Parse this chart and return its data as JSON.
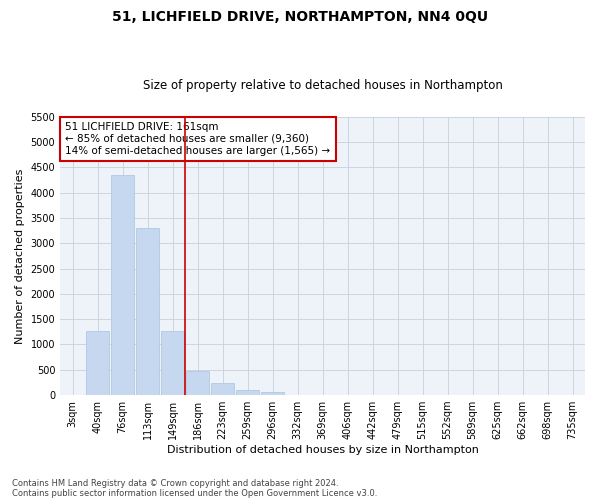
{
  "title": "51, LICHFIELD DRIVE, NORTHAMPTON, NN4 0QU",
  "subtitle": "Size of property relative to detached houses in Northampton",
  "xlabel": "Distribution of detached houses by size in Northampton",
  "ylabel": "Number of detached properties",
  "annotation_line1": "51 LICHFIELD DRIVE: 161sqm",
  "annotation_line2": "← 85% of detached houses are smaller (9,360)",
  "annotation_line3": "14% of semi-detached houses are larger (1,565) →",
  "footnote1": "Contains HM Land Registry data © Crown copyright and database right 2024.",
  "footnote2": "Contains public sector information licensed under the Open Government Licence v3.0.",
  "bin_labels": [
    "3sqm",
    "40sqm",
    "76sqm",
    "113sqm",
    "149sqm",
    "186sqm",
    "223sqm",
    "259sqm",
    "296sqm",
    "332sqm",
    "369sqm",
    "406sqm",
    "442sqm",
    "479sqm",
    "515sqm",
    "552sqm",
    "589sqm",
    "625sqm",
    "662sqm",
    "698sqm",
    "735sqm"
  ],
  "bar_values": [
    0,
    1270,
    4350,
    3300,
    1270,
    480,
    230,
    100,
    65,
    0,
    0,
    0,
    0,
    0,
    0,
    0,
    0,
    0,
    0,
    0,
    0
  ],
  "bar_color": "#c5d8ef",
  "bar_edge_color": "#a8c4e0",
  "vline_color": "#cc0000",
  "annotation_box_color": "#cc0000",
  "ylim": [
    0,
    5500
  ],
  "yticks": [
    0,
    500,
    1000,
    1500,
    2000,
    2500,
    3000,
    3500,
    4000,
    4500,
    5000,
    5500
  ],
  "plot_bg_color": "#eef2f9",
  "grid_color": "#c8d0dc",
  "title_fontsize": 10,
  "subtitle_fontsize": 8.5,
  "annotation_fontsize": 7.5,
  "footnote_fontsize": 6,
  "axis_label_fontsize": 8,
  "tick_fontsize": 7
}
